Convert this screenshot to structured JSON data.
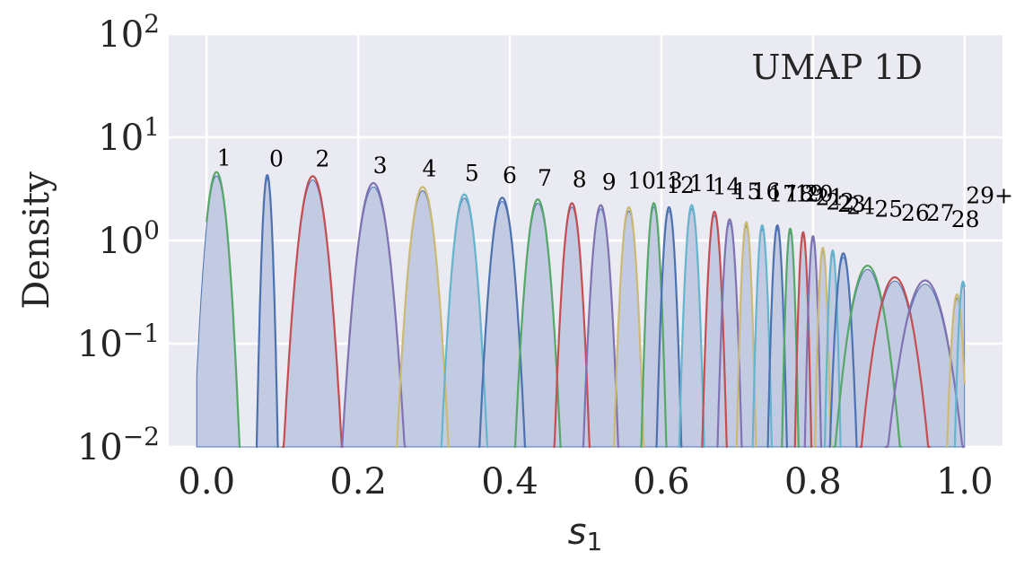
{
  "chart_data": {
    "type": "area",
    "title": "",
    "annotation": "UMAP 1D",
    "xlabel_base": "s",
    "xlabel_sub": "1",
    "ylabel": "Density",
    "xlim": [
      -0.05,
      1.05
    ],
    "ylim": [
      0.01,
      100
    ],
    "yscale": "log",
    "grid": true,
    "x_ticks": [
      {
        "value": 0.0,
        "label": "0.0"
      },
      {
        "value": 0.2,
        "label": "0.2"
      },
      {
        "value": 0.4,
        "label": "0.4"
      },
      {
        "value": 0.6,
        "label": "0.6"
      },
      {
        "value": 0.8,
        "label": "0.8"
      },
      {
        "value": 1.0,
        "label": "1.0"
      }
    ],
    "y_ticks": [
      {
        "value": 0.01,
        "base": "10",
        "exp": "−2"
      },
      {
        "value": 0.1,
        "base": "10",
        "exp": "−1"
      },
      {
        "value": 1,
        "base": "10",
        "exp": "0"
      },
      {
        "value": 10,
        "base": "10",
        "exp": "1"
      },
      {
        "value": 100,
        "base": "10",
        "exp": "2"
      }
    ],
    "histogram_fill": "#c3cbe2",
    "histogram_edge": "#4c72b0",
    "components": [
      {
        "label": "1",
        "mu": 0.013,
        "sigma": 0.0087,
        "peak": 4.6,
        "color": "#55a868",
        "lx": 0.023,
        "ly": 5.3
      },
      {
        "label": "0",
        "mu": 0.08,
        "sigma": 0.004,
        "peak": 4.3,
        "color": "#4c72b0",
        "lx": 0.092,
        "ly": 5.2
      },
      {
        "label": "2",
        "mu": 0.14,
        "sigma": 0.011,
        "peak": 4.2,
        "color": "#c44e52",
        "lx": 0.153,
        "ly": 5.2
      },
      {
        "label": "3",
        "mu": 0.22,
        "sigma": 0.012,
        "peak": 3.6,
        "color": "#8172b2",
        "lx": 0.229,
        "ly": 4.5
      },
      {
        "label": "4",
        "mu": 0.285,
        "sigma": 0.01,
        "peak": 3.3,
        "color": "#ccb974",
        "lx": 0.294,
        "ly": 4.2
      },
      {
        "label": "5",
        "mu": 0.34,
        "sigma": 0.009,
        "peak": 2.8,
        "color": "#64b5cd",
        "lx": 0.35,
        "ly": 3.8
      },
      {
        "label": "6",
        "mu": 0.39,
        "sigma": 0.009,
        "peak": 2.6,
        "color": "#4c72b0",
        "lx": 0.4,
        "ly": 3.6
      },
      {
        "label": "7",
        "mu": 0.437,
        "sigma": 0.009,
        "peak": 2.5,
        "color": "#55a868",
        "lx": 0.446,
        "ly": 3.4
      },
      {
        "label": "8",
        "mu": 0.482,
        "sigma": 0.007,
        "peak": 2.3,
        "color": "#c44e52",
        "lx": 0.492,
        "ly": 3.3
      },
      {
        "label": "9",
        "mu": 0.52,
        "sigma": 0.007,
        "peak": 2.2,
        "color": "#8172b2",
        "lx": 0.531,
        "ly": 3.1
      },
      {
        "label": "10",
        "mu": 0.557,
        "sigma": 0.006,
        "peak": 2.1,
        "color": "#ccb974",
        "lx": 0.574,
        "ly": 3.2
      },
      {
        "label": "13",
        "mu": 0.59,
        "sigma": 0.005,
        "peak": 2.3,
        "color": "#55a868",
        "lx": 0.609,
        "ly": 3.2
      },
      {
        "label": "12",
        "mu": 0.61,
        "sigma": 0.005,
        "peak": 2.1,
        "color": "#4c72b0",
        "lx": 0.625,
        "ly": 2.9
      },
      {
        "label": "11",
        "mu": 0.64,
        "sigma": 0.005,
        "peak": 2.2,
        "color": "#64b5cd",
        "lx": 0.656,
        "ly": 3.0
      },
      {
        "label": "14",
        "mu": 0.67,
        "sigma": 0.005,
        "peak": 1.9,
        "color": "#c44e52",
        "lx": 0.686,
        "ly": 2.8
      },
      {
        "label": "15",
        "mu": 0.69,
        "sigma": 0.005,
        "peak": 1.6,
        "color": "#8172b2",
        "lx": 0.713,
        "ly": 2.5
      },
      {
        "label": "16",
        "mu": 0.712,
        "sigma": 0.004,
        "peak": 1.5,
        "color": "#ccb974",
        "lx": 0.738,
        "ly": 2.5
      },
      {
        "label": "17",
        "mu": 0.733,
        "sigma": 0.004,
        "peak": 1.4,
        "color": "#64b5cd",
        "lx": 0.76,
        "ly": 2.4
      },
      {
        "label": "18",
        "mu": 0.753,
        "sigma": 0.004,
        "peak": 1.4,
        "color": "#4c72b0",
        "lx": 0.782,
        "ly": 2.4
      },
      {
        "label": "19",
        "mu": 0.77,
        "sigma": 0.0035,
        "peak": 1.3,
        "color": "#55a868",
        "lx": 0.795,
        "ly": 2.4
      },
      {
        "label": "20",
        "mu": 0.787,
        "sigma": 0.0035,
        "peak": 1.2,
        "color": "#c44e52",
        "lx": 0.808,
        "ly": 2.4
      },
      {
        "label": "21",
        "mu": 0.8,
        "sigma": 0.0035,
        "peak": 1.1,
        "color": "#8172b2",
        "lx": 0.822,
        "ly": 2.2
      },
      {
        "label": "22",
        "mu": 0.813,
        "sigma": 0.0035,
        "peak": 0.85,
        "color": "#ccb974",
        "lx": 0.836,
        "ly": 2.0
      },
      {
        "label": "23",
        "mu": 0.826,
        "sigma": 0.0035,
        "peak": 0.8,
        "color": "#64b5cd",
        "lx": 0.851,
        "ly": 1.9
      },
      {
        "label": "24",
        "mu": 0.84,
        "sigma": 0.006,
        "peak": 0.75,
        "color": "#4c72b0",
        "lx": 0.863,
        "ly": 1.8
      },
      {
        "label": "25",
        "mu": 0.872,
        "sigma": 0.015,
        "peak": 0.57,
        "color": "#55a868",
        "lx": 0.9,
        "ly": 1.7
      },
      {
        "label": "26",
        "mu": 0.908,
        "sigma": 0.016,
        "peak": 0.44,
        "color": "#c44e52",
        "lx": 0.935,
        "ly": 1.55
      },
      {
        "label": "27",
        "mu": 0.948,
        "sigma": 0.018,
        "peak": 0.41,
        "color": "#8172b2",
        "lx": 0.968,
        "ly": 1.55
      },
      {
        "label": "28",
        "mu": 0.99,
        "sigma": 0.005,
        "peak": 0.3,
        "color": "#ccb974",
        "lx": 1.001,
        "ly": 1.35
      },
      {
        "label": "29+",
        "mu": 0.998,
        "sigma": 0.004,
        "peak": 0.4,
        "color": "#64b5cd",
        "lx": 1.033,
        "ly": 2.3
      }
    ]
  }
}
